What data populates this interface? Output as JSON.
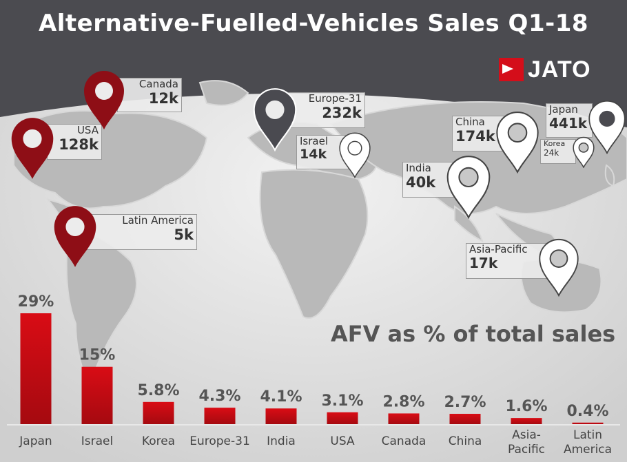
{
  "title": "Alternative-Fuelled-Vehicles Sales Q1-18",
  "logo_text": "JATO",
  "colors": {
    "header_bg": "#4b4b50",
    "bar_red": "#d90c15",
    "dark_red_pin": "#8e0e16",
    "dark_grey_pin": "#4a4a50",
    "white_pin": "#ffffff"
  },
  "map_labels": [
    {
      "name": "Canada",
      "value": "12k",
      "pin": "dark-red"
    },
    {
      "name": "USA",
      "value": "128k",
      "pin": "dark-red"
    },
    {
      "name": "Latin America",
      "value": "5k",
      "pin": "dark-red"
    },
    {
      "name": "Europe-31",
      "value": "232k",
      "pin": "dark-grey"
    },
    {
      "name": "Israel",
      "value": "14k",
      "pin": "white"
    },
    {
      "name": "India",
      "value": "40k",
      "pin": "white"
    },
    {
      "name": "China",
      "value": "174k",
      "pin": "white"
    },
    {
      "name": "Japan",
      "value": "441k",
      "pin": "dark-grey"
    },
    {
      "name": "Korea",
      "value": "24k",
      "pin": "white"
    },
    {
      "name": "Asia-Pacific",
      "value": "17k",
      "pin": "white"
    }
  ],
  "chart_data": {
    "type": "bar",
    "title": "AFV as % of total sales",
    "categories": [
      "Japan",
      "Israel",
      "Korea",
      "Europe-31",
      "India",
      "USA",
      "Canada",
      "China",
      "Asia-Pacific",
      "Latin America"
    ],
    "category_lines": [
      [
        "Japan"
      ],
      [
        "Israel"
      ],
      [
        "Korea"
      ],
      [
        "Europe-31"
      ],
      [
        "India"
      ],
      [
        "USA"
      ],
      [
        "Canada"
      ],
      [
        "China"
      ],
      [
        "Asia-",
        "Pacific"
      ],
      [
        "Latin",
        "America"
      ]
    ],
    "values": [
      29,
      15,
      5.8,
      4.3,
      4.1,
      3.1,
      2.8,
      2.7,
      1.6,
      0.4
    ],
    "value_labels": [
      "29%",
      "15%",
      "5.8%",
      "4.3%",
      "4.1%",
      "3.1%",
      "2.8%",
      "2.7%",
      "1.6%",
      "0.4%"
    ],
    "ylim": [
      0,
      29
    ],
    "grid": false,
    "legend": "none"
  }
}
